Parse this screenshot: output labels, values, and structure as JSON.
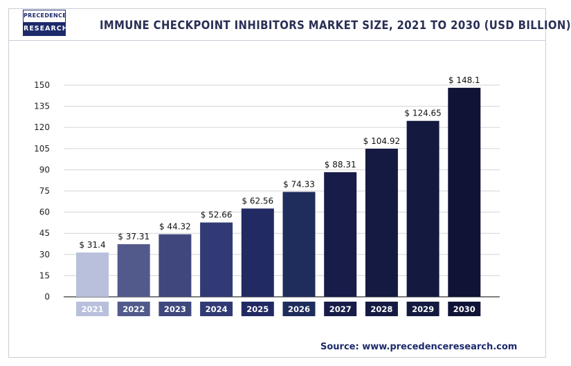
{
  "logo": {
    "line1": "PRECEDENCE",
    "line2": "RESEARCH"
  },
  "source": "Source: www.precedenceresearch.com",
  "chart_data": {
    "type": "bar",
    "title": "IMMUNE CHECKPOINT INHIBITORS MARKET SIZE, 2021 TO 2030 (USD BILLION)",
    "xlabel": "",
    "ylabel": "",
    "ylim": [
      0,
      150
    ],
    "yticks": [
      0,
      15,
      30,
      45,
      60,
      75,
      90,
      105,
      120,
      135,
      150
    ],
    "grid": true,
    "categories": [
      "2021",
      "2022",
      "2023",
      "2024",
      "2025",
      "2026",
      "2027",
      "2028",
      "2029",
      "2030"
    ],
    "values": [
      31.4,
      37.31,
      44.32,
      52.66,
      62.56,
      74.33,
      88.31,
      104.92,
      124.65,
      148.1
    ],
    "value_labels": [
      "$ 31.4",
      "$ 37.31",
      "$ 44.32",
      "$ 52.66",
      "$ 62.56",
      "$ 74.33",
      "$ 88.31",
      "$ 104.92",
      "$ 124.65",
      "$ 148.1"
    ],
    "bar_colors": [
      "#b8c0dc",
      "#525a8c",
      "#3f477d",
      "#313a74",
      "#222a63",
      "#1f2d5c",
      "#171c48",
      "#151a42",
      "#141a3f",
      "#0f1336"
    ]
  }
}
